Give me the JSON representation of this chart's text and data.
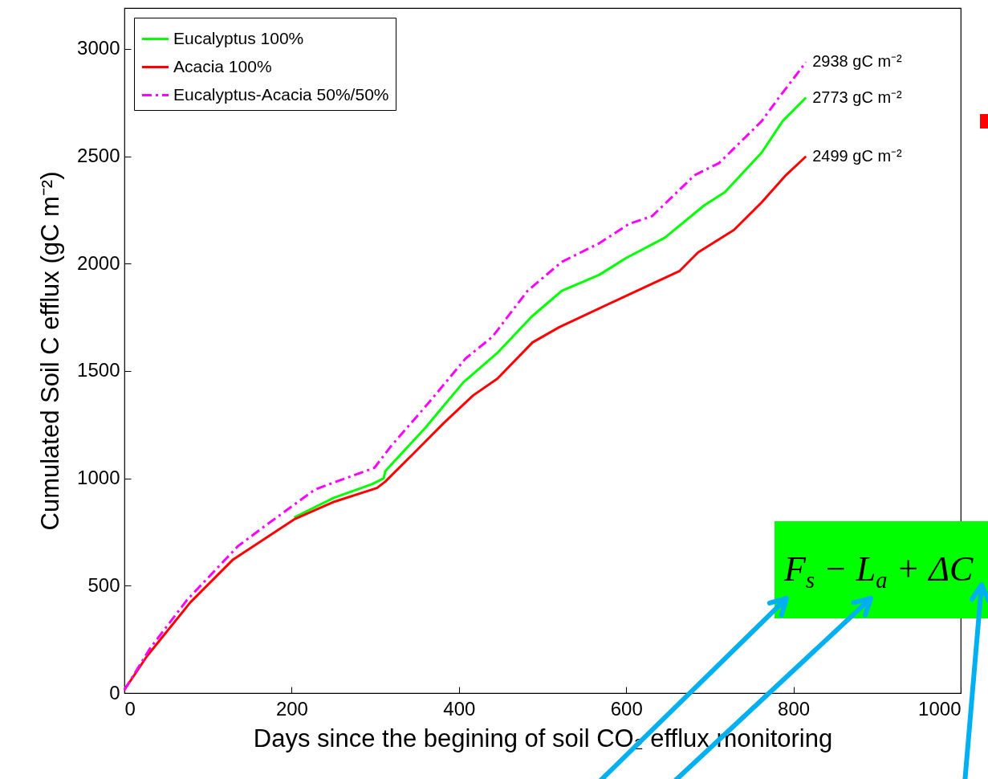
{
  "chart_data": {
    "type": "line",
    "xlabel": "Days since the begining of soil CO₂ efflux monitoring",
    "ylabel": "Cumulated Soil C efflux (gC m⁻²)",
    "xlim": [
      0,
      1000
    ],
    "xticks": [
      0,
      200,
      400,
      600,
      800,
      1000
    ],
    "ylim": [
      0,
      3190
    ],
    "yticks": [
      0,
      500,
      1000,
      1500,
      2000,
      2500,
      3000
    ],
    "legend": "top left",
    "grid": false,
    "series": [
      {
        "name": "Eucalyptus 100%",
        "color": "#00ff00",
        "line_style": "solid",
        "x": [
          203,
          251,
          296,
          310,
          312,
          360,
          405,
          446,
          487,
          523,
          568,
          600,
          646,
          693,
          718,
          762,
          787,
          815
        ],
        "values": [
          818,
          910,
          973,
          1000,
          1034,
          1236,
          1446,
          1584,
          1753,
          1873,
          1948,
          2026,
          2120,
          2270,
          2333,
          2517,
          2663,
          2773
        ],
        "value_labels": [
          null,
          null,
          null,
          null,
          null,
          null,
          null,
          null,
          null,
          null,
          null,
          null,
          null,
          null,
          null,
          null,
          null,
          "2773 gC m⁻²"
        ]
      },
      {
        "name": "Acacia 100%",
        "color": "#ff0000",
        "line_style": "solid",
        "x": [
          0,
          27,
          79,
          130,
          203,
          251,
          302,
          312,
          344,
          382,
          417,
          446,
          488,
          520,
          600,
          664,
          686,
          729,
          762,
          791,
          815
        ],
        "values": [
          15,
          172,
          423,
          622,
          809,
          891,
          955,
          985,
          1109,
          1258,
          1386,
          1464,
          1633,
          1704,
          1850,
          1966,
          2052,
          2157,
          2285,
          2412,
          2499
        ],
        "value_labels": [
          null,
          null,
          null,
          null,
          null,
          null,
          null,
          null,
          null,
          null,
          null,
          null,
          null,
          null,
          null,
          null,
          null,
          null,
          null,
          null,
          "2499 gC m⁻²"
        ]
      },
      {
        "name": "Eucalyptus-Acacia 50%/50%",
        "color": "#ff00ff",
        "line_style": "dashed",
        "x": [
          0,
          31,
          75,
          136,
          175,
          228,
          267,
          299,
          318,
          363,
          408,
          440,
          482,
          523,
          568,
          603,
          631,
          682,
          711,
          762,
          783,
          815
        ],
        "values": [
          15,
          210,
          434,
          685,
          798,
          948,
          1004,
          1049,
          1146,
          1348,
          1558,
          1659,
          1873,
          2008,
          2095,
          2184,
          2221,
          2412,
          2468,
          2663,
          2775,
          2938
        ],
        "value_labels": [
          null,
          null,
          null,
          null,
          null,
          null,
          null,
          null,
          null,
          null,
          null,
          null,
          null,
          null,
          null,
          null,
          null,
          null,
          null,
          null,
          null,
          "2938 gC m⁻²"
        ]
      }
    ],
    "annotations": [
      "F$_{s}$ − L$_{a}$ + ΔC"
    ]
  }
}
